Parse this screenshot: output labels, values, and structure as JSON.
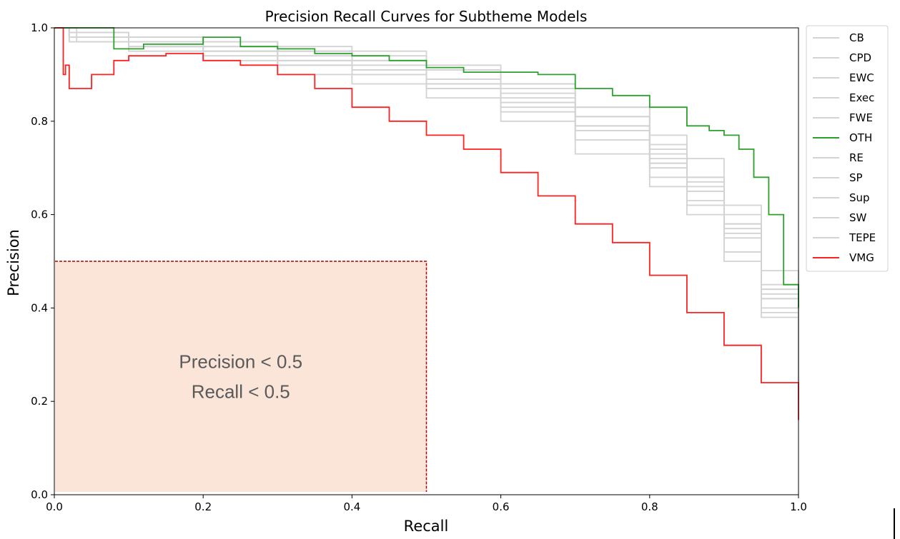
{
  "chart_data": {
    "type": "line",
    "title": "Precision Recall Curves for Subtheme Models",
    "xlabel": "Recall",
    "ylabel": "Precision",
    "xlim": [
      0.0,
      1.0
    ],
    "ylim": [
      0.0,
      1.0
    ],
    "xticks": [
      "0.0",
      "0.2",
      "0.4",
      "0.6",
      "0.8",
      "1.0"
    ],
    "yticks": [
      "0.0",
      "0.2",
      "0.4",
      "0.6",
      "0.8",
      "1.0"
    ],
    "grid": false,
    "legend_position": "outside right, top",
    "colors": {
      "background_series": "#d3d3d3",
      "OTH": "#2ca02c",
      "VMG": "#ff2020",
      "region_fill": "#fae5d8",
      "region_border": "#b30000"
    },
    "series": [
      {
        "name": "CB",
        "color": "#d3d3d3",
        "x": [
          0.0,
          0.02,
          0.1,
          0.2,
          0.3,
          0.4,
          0.5,
          0.6,
          0.7,
          0.8,
          0.85,
          0.9,
          0.95,
          1.0
        ],
        "y": [
          1.0,
          0.99,
          0.98,
          0.97,
          0.95,
          0.93,
          0.89,
          0.85,
          0.79,
          0.71,
          0.65,
          0.55,
          0.42,
          0.25
        ]
      },
      {
        "name": "CPD",
        "color": "#d3d3d3",
        "x": [
          0.0,
          0.03,
          0.1,
          0.2,
          0.3,
          0.4,
          0.5,
          0.6,
          0.7,
          0.8,
          0.85,
          0.9,
          0.95,
          1.0
        ],
        "y": [
          1.0,
          0.97,
          0.96,
          0.95,
          0.93,
          0.91,
          0.88,
          0.84,
          0.78,
          0.7,
          0.63,
          0.52,
          0.4,
          0.22
        ]
      },
      {
        "name": "EWC",
        "color": "#d3d3d3",
        "x": [
          0.0,
          0.02,
          0.1,
          0.2,
          0.3,
          0.4,
          0.5,
          0.6,
          0.7,
          0.8,
          0.85,
          0.9,
          0.95,
          1.0
        ],
        "y": [
          1.0,
          0.98,
          0.97,
          0.96,
          0.95,
          0.93,
          0.91,
          0.88,
          0.83,
          0.75,
          0.68,
          0.6,
          0.45,
          0.28
        ]
      },
      {
        "name": "Exec",
        "color": "#d3d3d3",
        "x": [
          0.0,
          0.02,
          0.1,
          0.2,
          0.3,
          0.4,
          0.5,
          0.6,
          0.7,
          0.8,
          0.85,
          0.9,
          0.95,
          1.0
        ],
        "y": [
          1.0,
          0.97,
          0.95,
          0.93,
          0.9,
          0.88,
          0.85,
          0.8,
          0.73,
          0.66,
          0.6,
          0.5,
          0.38,
          0.2
        ]
      },
      {
        "name": "FWE",
        "color": "#d3d3d3",
        "x": [
          0.0,
          0.02,
          0.1,
          0.2,
          0.3,
          0.4,
          0.5,
          0.6,
          0.7,
          0.8,
          0.85,
          0.9,
          0.95,
          1.0
        ],
        "y": [
          1.0,
          0.99,
          0.98,
          0.97,
          0.96,
          0.95,
          0.92,
          0.88,
          0.83,
          0.77,
          0.72,
          0.62,
          0.48,
          0.3
        ]
      },
      {
        "name": "OTH",
        "color": "#2ca02c",
        "x": [
          0.0,
          0.08,
          0.08,
          0.12,
          0.2,
          0.25,
          0.3,
          0.35,
          0.4,
          0.45,
          0.5,
          0.55,
          0.6,
          0.65,
          0.7,
          0.75,
          0.8,
          0.85,
          0.88,
          0.9,
          0.92,
          0.94,
          0.96,
          0.98,
          1.0
        ],
        "y": [
          1.0,
          1.0,
          0.955,
          0.965,
          0.98,
          0.96,
          0.955,
          0.945,
          0.94,
          0.93,
          0.915,
          0.905,
          0.905,
          0.9,
          0.87,
          0.855,
          0.83,
          0.79,
          0.78,
          0.77,
          0.74,
          0.68,
          0.6,
          0.45,
          0.4
        ]
      },
      {
        "name": "RE",
        "color": "#d3d3d3",
        "x": [
          0.0,
          0.02,
          0.1,
          0.2,
          0.3,
          0.4,
          0.5,
          0.6,
          0.7,
          0.8,
          0.85,
          0.9,
          0.95,
          1.0
        ],
        "y": [
          1.0,
          0.98,
          0.97,
          0.95,
          0.92,
          0.9,
          0.87,
          0.82,
          0.76,
          0.68,
          0.62,
          0.52,
          0.39,
          0.24
        ]
      },
      {
        "name": "SP",
        "color": "#d3d3d3",
        "x": [
          0.0,
          0.02,
          0.1,
          0.2,
          0.3,
          0.4,
          0.5,
          0.6,
          0.7,
          0.8,
          0.85,
          0.9,
          0.95,
          1.0
        ],
        "y": [
          1.0,
          0.98,
          0.97,
          0.96,
          0.94,
          0.92,
          0.89,
          0.86,
          0.81,
          0.73,
          0.67,
          0.58,
          0.44,
          0.27
        ]
      },
      {
        "name": "Sup",
        "color": "#d3d3d3",
        "x": [
          0.0,
          0.02,
          0.1,
          0.2,
          0.3,
          0.4,
          0.5,
          0.6,
          0.7,
          0.8,
          0.85,
          0.9,
          0.95,
          1.0
        ],
        "y": [
          1.0,
          0.99,
          0.98,
          0.97,
          0.95,
          0.94,
          0.91,
          0.87,
          0.81,
          0.74,
          0.68,
          0.58,
          0.43,
          0.26
        ]
      },
      {
        "name": "SW",
        "color": "#d3d3d3",
        "x": [
          0.0,
          0.02,
          0.1,
          0.2,
          0.3,
          0.4,
          0.5,
          0.6,
          0.7,
          0.8,
          0.85,
          0.9,
          0.95,
          1.0
        ],
        "y": [
          1.0,
          0.97,
          0.96,
          0.94,
          0.92,
          0.9,
          0.87,
          0.83,
          0.78,
          0.71,
          0.65,
          0.56,
          0.42,
          0.24
        ]
      },
      {
        "name": "TEPE",
        "color": "#d3d3d3",
        "x": [
          0.0,
          0.02,
          0.1,
          0.2,
          0.3,
          0.4,
          0.5,
          0.6,
          0.7,
          0.8,
          0.85,
          0.9,
          0.95,
          1.0
        ],
        "y": [
          1.0,
          0.98,
          0.96,
          0.95,
          0.93,
          0.91,
          0.88,
          0.84,
          0.79,
          0.72,
          0.66,
          0.57,
          0.44,
          0.3
        ]
      },
      {
        "name": "VMG",
        "color": "#ff2020",
        "x": [
          0.0,
          0.01,
          0.012,
          0.015,
          0.02,
          0.03,
          0.05,
          0.08,
          0.1,
          0.15,
          0.2,
          0.25,
          0.3,
          0.35,
          0.4,
          0.45,
          0.5,
          0.55,
          0.6,
          0.65,
          0.7,
          0.75,
          0.8,
          0.85,
          0.9,
          0.95,
          1.0
        ],
        "y": [
          1.0,
          1.0,
          0.9,
          0.92,
          0.87,
          0.87,
          0.9,
          0.93,
          0.94,
          0.945,
          0.93,
          0.92,
          0.9,
          0.87,
          0.83,
          0.8,
          0.77,
          0.74,
          0.69,
          0.64,
          0.58,
          0.54,
          0.47,
          0.39,
          0.32,
          0.24,
          0.16
        ]
      }
    ],
    "annotation": {
      "type": "shaded_region",
      "x_range": [
        0.0,
        0.5
      ],
      "y_range": [
        0.0,
        0.5
      ],
      "lines": [
        "Precision < 0.5",
        "Recall < 0.5"
      ]
    }
  }
}
